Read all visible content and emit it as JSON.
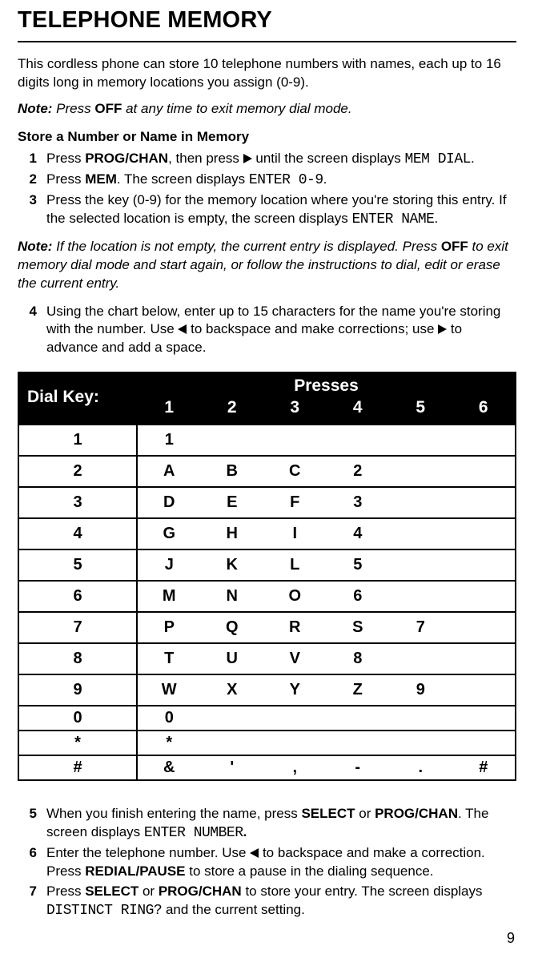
{
  "title": "TELEPHONE MEMORY",
  "intro": "This cordless phone can store 10 telephone numbers with names, each up to 16 digits long in memory locations you assign (0-9).",
  "note1_prefix": "Note:",
  "note1_b": " Press ",
  "note1_off": "OFF",
  "note1_c": " at any time to exit memory dial mode.",
  "subhead1": "Store a Number or Name in Memory",
  "step1": {
    "num": "1",
    "a": "Press ",
    "b": "PROG/CHAN",
    "c": ", then press ",
    "d": " until the screen displays ",
    "e": "MEM DIAL",
    "f": "."
  },
  "step2": {
    "num": "2",
    "a": "Press ",
    "b": "MEM",
    "c": ". The screen displays ",
    "d": "ENTER 0-9",
    "e": "."
  },
  "step3": {
    "num": "3",
    "a": "Press the key (0-9) for the memory location where you're storing this entry. If the selected location is empty, the screen displays ",
    "b": "ENTER NAME",
    "c": "."
  },
  "note2_prefix": "Note:",
  "note2_a": " If the location is not empty, the current entry is displayed. Press ",
  "note2_off": "OFF",
  "note2_b": " to exit memory dial mode and start again, or follow the instructions to dial, edit or erase the current entry.",
  "step4": {
    "num": "4",
    "a": "Using the chart below, enter up to 15 characters for the name you're storing with the number. Use ",
    "b": " to backspace and make corrections; use ",
    "c": " to advance and add a space."
  },
  "chart": {
    "dialkey_label": "Dial Key:",
    "presses_label": "Presses",
    "cols": [
      "1",
      "2",
      "3",
      "4",
      "5",
      "6"
    ],
    "rows": [
      {
        "key": "1",
        "cells": [
          "1",
          "",
          "",
          "",
          "",
          ""
        ],
        "short": false
      },
      {
        "key": "2",
        "cells": [
          "A",
          "B",
          "C",
          "2",
          "",
          ""
        ],
        "short": false
      },
      {
        "key": "3",
        "cells": [
          "D",
          "E",
          "F",
          "3",
          "",
          ""
        ],
        "short": false
      },
      {
        "key": "4",
        "cells": [
          "G",
          "H",
          "I",
          "4",
          "",
          ""
        ],
        "short": false
      },
      {
        "key": "5",
        "cells": [
          "J",
          "K",
          "L",
          "5",
          "",
          ""
        ],
        "short": false
      },
      {
        "key": "6",
        "cells": [
          "M",
          "N",
          "O",
          "6",
          "",
          ""
        ],
        "short": false
      },
      {
        "key": "7",
        "cells": [
          "P",
          "Q",
          "R",
          "S",
          "7",
          ""
        ],
        "short": false
      },
      {
        "key": "8",
        "cells": [
          "T",
          "U",
          "V",
          "8",
          "",
          ""
        ],
        "short": false
      },
      {
        "key": "9",
        "cells": [
          "W",
          "X",
          "Y",
          "Z",
          "9",
          ""
        ],
        "short": false
      },
      {
        "key": "0",
        "cells": [
          "0",
          "",
          "",
          "",
          "",
          ""
        ],
        "short": true
      },
      {
        "key": "*",
        "cells": [
          "*",
          "",
          "",
          "",
          "",
          ""
        ],
        "short": true
      },
      {
        "key": "#",
        "cells": [
          "&",
          "'",
          ",",
          "-",
          ".",
          "#"
        ],
        "short": true
      }
    ]
  },
  "step5": {
    "num": "5",
    "a": "When you finish entering the name, press ",
    "b": "SELECT",
    "c": " or ",
    "d": "PROG/CHAN",
    "e": ". The screen displays ",
    "f": "ENTER NUMBER",
    "g": "."
  },
  "step6": {
    "num": "6",
    "a": "Enter the telephone number. Use ",
    "b": " to backspace and make a correction. Press ",
    "c": "REDIAL/PAUSE",
    "d": " to store a pause in the dialing sequence."
  },
  "step7": {
    "num": "7",
    "a": "Press ",
    "b": "SELECT",
    "c": " or ",
    "d": "PROG/CHAN",
    "e": " to store your entry. The screen displays ",
    "f": "DISTINCT RING?",
    "g": " and the current setting."
  },
  "pagenum": "9"
}
